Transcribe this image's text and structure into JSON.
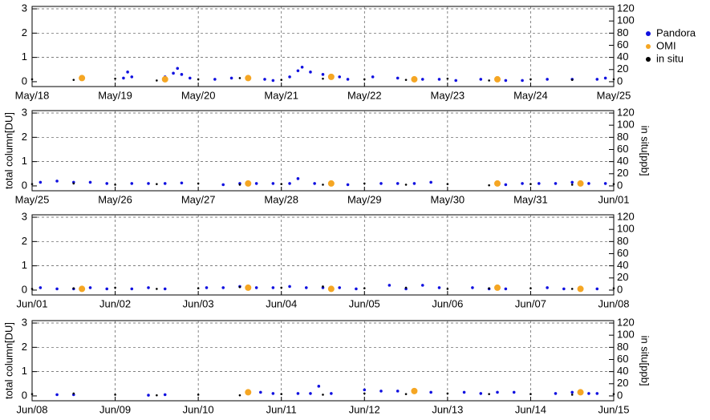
{
  "chart_data": [
    {
      "type": "scatter",
      "xlim": [
        18,
        25
      ],
      "ylim": [
        -0.2,
        3.1
      ],
      "y2lim": [
        -8,
        124
      ],
      "grid": true,
      "legend": "right",
      "xticks": [
        {
          "value": 18,
          "label": "May/18"
        },
        {
          "value": 19,
          "label": "May/19"
        },
        {
          "value": 20,
          "label": "May/20"
        },
        {
          "value": 21,
          "label": "May/21"
        },
        {
          "value": 22,
          "label": "May/22"
        },
        {
          "value": 23,
          "label": "May/23"
        },
        {
          "value": 24,
          "label": "May/24"
        },
        {
          "value": 25,
          "label": "May/25"
        }
      ],
      "yticks": [
        0,
        1,
        2,
        3
      ],
      "y2ticks": [
        0,
        20,
        40,
        60,
        80,
        100,
        120
      ],
      "series": [
        {
          "name": "Pandora",
          "color": "#1010e0",
          "x": [
            19.1,
            19.15,
            19.2,
            19.6,
            19.7,
            19.75,
            19.8,
            19.9,
            20.2,
            20.4,
            20.6,
            20.8,
            20.9,
            21.1,
            21.2,
            21.25,
            21.35,
            21.5,
            21.7,
            21.8,
            22.1,
            22.4,
            22.7,
            22.9,
            23.1,
            23.4,
            23.7,
            23.9,
            24.2,
            24.5,
            24.8,
            24.9
          ],
          "values": [
            0.15,
            0.4,
            0.2,
            0.2,
            0.35,
            0.55,
            0.3,
            0.15,
            0.1,
            0.15,
            0.1,
            0.1,
            0.05,
            0.2,
            0.45,
            0.6,
            0.4,
            0.3,
            0.2,
            0.1,
            0.2,
            0.15,
            0.1,
            0.1,
            0.05,
            0.1,
            0.05,
            0.05,
            0.1,
            0.1,
            0.1,
            0.15
          ]
        },
        {
          "name": "OMI",
          "color": "#f5a623",
          "x": [
            18.6,
            19.6,
            20.6,
            21.6,
            22.6,
            23.6
          ],
          "values": [
            0.15,
            0.1,
            0.15,
            0.2,
            0.1,
            0.1
          ]
        },
        {
          "name": "in situ",
          "color": "#000000",
          "axis": "y2",
          "x": [
            18,
            18.5,
            19,
            19.5,
            20,
            20.5,
            21,
            21.5,
            22,
            22.5,
            23,
            23.5,
            24,
            24.5,
            25
          ],
          "values": [
            4,
            3,
            5,
            2,
            4,
            6,
            3,
            5,
            4,
            3,
            5,
            2,
            4,
            3,
            4
          ]
        }
      ]
    },
    {
      "type": "scatter",
      "xlim": [
        25,
        32
      ],
      "ylim": [
        -0.2,
        3.1
      ],
      "y2lim": [
        -8,
        124
      ],
      "grid": true,
      "ylabel": "total column[DU]",
      "y2label": "in situ[ppb]",
      "xticks": [
        {
          "value": 25,
          "label": "May/25"
        },
        {
          "value": 26,
          "label": "May/26"
        },
        {
          "value": 27,
          "label": "May/27"
        },
        {
          "value": 28,
          "label": "May/28"
        },
        {
          "value": 29,
          "label": "May/29"
        },
        {
          "value": 30,
          "label": "May/30"
        },
        {
          "value": 31,
          "label": "May/31"
        },
        {
          "value": 32,
          "label": "Jun/01"
        }
      ],
      "yticks": [
        0,
        1,
        2,
        3
      ],
      "y2ticks": [
        0,
        20,
        40,
        60,
        80,
        100,
        120
      ],
      "series": [
        {
          "color": "#1010e0",
          "x": [
            25.1,
            25.3,
            25.5,
            25.7,
            25.9,
            26.2,
            26.4,
            26.6,
            26.8,
            27.3,
            27.5,
            27.7,
            27.9,
            28.1,
            28.2,
            28.4,
            28.6,
            28.8,
            29.2,
            29.4,
            29.6,
            29.8,
            30.7,
            30.9,
            31.1,
            31.3,
            31.5,
            31.7,
            31.9
          ],
          "values": [
            0.15,
            0.2,
            0.15,
            0.15,
            0.1,
            0.1,
            0.1,
            0.1,
            0.12,
            0.05,
            0.1,
            0.1,
            0.1,
            0.1,
            0.3,
            0.1,
            0.1,
            0.05,
            0.1,
            0.1,
            0.1,
            0.15,
            0.05,
            0.1,
            0.1,
            0.1,
            0.15,
            0.1,
            0.1
          ]
        },
        {
          "color": "#f5a623",
          "x": [
            27.6,
            28.6,
            30.6,
            31.6
          ],
          "values": [
            0.1,
            0.1,
            0.1,
            0.1
          ]
        },
        {
          "color": "#000000",
          "axis": "y2",
          "x": [
            25,
            25.5,
            26,
            26.5,
            27,
            27.5,
            28,
            28.5,
            29,
            29.5,
            30,
            30.5,
            31,
            31.5,
            32
          ],
          "values": [
            3,
            4,
            2,
            3,
            4,
            2,
            3,
            2,
            4,
            2,
            3,
            1,
            3,
            2,
            3
          ]
        }
      ]
    },
    {
      "type": "scatter",
      "xlim": [
        32,
        39
      ],
      "ylim": [
        -0.2,
        3.1
      ],
      "y2lim": [
        -8,
        124
      ],
      "grid": true,
      "xticks": [
        {
          "value": 32,
          "label": "Jun/01"
        },
        {
          "value": 33,
          "label": "Jun/02"
        },
        {
          "value": 34,
          "label": "Jun/03"
        },
        {
          "value": 35,
          "label": "Jun/04"
        },
        {
          "value": 36,
          "label": "Jun/05"
        },
        {
          "value": 37,
          "label": "Jun/06"
        },
        {
          "value": 38,
          "label": "Jun/07"
        },
        {
          "value": 39,
          "label": "Jun/08"
        }
      ],
      "yticks": [
        0,
        1,
        2,
        3
      ],
      "y2ticks": [
        0,
        20,
        40,
        60,
        80,
        100,
        120
      ],
      "series": [
        {
          "color": "#1010e0",
          "x": [
            32.1,
            32.3,
            32.5,
            32.7,
            32.9,
            33.2,
            33.4,
            33.6,
            34.1,
            34.3,
            34.5,
            34.7,
            34.9,
            35.1,
            35.3,
            35.5,
            35.7,
            35.9,
            36.3,
            36.5,
            36.7,
            36.9,
            37.3,
            37.5,
            37.7,
            38.2,
            38.4,
            38.6,
            38.8
          ],
          "values": [
            0.1,
            0.05,
            0.05,
            0.1,
            0.05,
            0.05,
            0.1,
            0.05,
            0.1,
            0.1,
            0.15,
            0.1,
            0.1,
            0.15,
            0.1,
            0.1,
            0.1,
            0.05,
            0.2,
            0.05,
            0.2,
            0.1,
            0.1,
            0.05,
            0.05,
            0.1,
            0.05,
            0.05,
            0.05
          ]
        },
        {
          "color": "#f5a623",
          "x": [
            32.6,
            34.6,
            35.6,
            37.6,
            38.6
          ],
          "values": [
            0.05,
            0.1,
            0.05,
            0.1,
            0.05
          ]
        },
        {
          "color": "#000000",
          "axis": "y2",
          "x": [
            32,
            32.5,
            33,
            33.5,
            34,
            34.5,
            35,
            35.5,
            36,
            36.5,
            37,
            37.5,
            38,
            38.5,
            39
          ],
          "values": [
            2,
            3,
            4,
            2,
            3,
            5,
            4,
            6,
            3,
            4,
            2,
            3,
            3,
            2,
            3
          ]
        }
      ]
    },
    {
      "type": "scatter",
      "xlim": [
        39,
        46
      ],
      "ylim": [
        -0.2,
        3.1
      ],
      "y2lim": [
        -8,
        124
      ],
      "grid": true,
      "ylabel": "total column[DU]",
      "y2label": "in situ[ppb]",
      "xticks": [
        {
          "value": 39,
          "label": "Jun/08"
        },
        {
          "value": 40,
          "label": "Jun/09"
        },
        {
          "value": 41,
          "label": "Jun/10"
        },
        {
          "value": 42,
          "label": "Jun/11"
        },
        {
          "value": 43,
          "label": "Jun/12"
        },
        {
          "value": 44,
          "label": "Jun/13"
        },
        {
          "value": 45,
          "label": "Jun/14"
        },
        {
          "value": 46,
          "label": "Jun/15"
        }
      ],
      "yticks": [
        0,
        1,
        2,
        3
      ],
      "y2ticks": [
        0,
        20,
        40,
        60,
        80,
        100,
        120
      ],
      "series": [
        {
          "color": "#1010e0",
          "x": [
            39.3,
            39.5,
            40.4,
            40.6,
            41.6,
            41.75,
            41.9,
            42.2,
            42.35,
            42.45,
            42.6,
            43.0,
            43.2,
            43.4,
            43.6,
            43.8,
            44.2,
            44.4,
            44.6,
            44.8,
            45.3,
            45.5,
            45.7,
            45.8
          ],
          "values": [
            0.05,
            0.05,
            0.03,
            0.05,
            0.1,
            0.15,
            0.1,
            0.1,
            0.1,
            0.4,
            0.1,
            0.25,
            0.2,
            0.2,
            0.2,
            0.15,
            0.15,
            0.1,
            0.15,
            0.15,
            0.1,
            0.15,
            0.1,
            0.1
          ]
        },
        {
          "color": "#f5a623",
          "x": [
            41.6,
            43.6,
            45.6
          ],
          "values": [
            0.15,
            0.2,
            0.15
          ]
        },
        {
          "color": "#000000",
          "axis": "y2",
          "x": [
            39,
            39.5,
            40,
            40.5,
            41,
            41.5,
            42,
            42.5,
            43,
            43.5,
            44,
            44.5,
            45,
            45.5,
            46
          ],
          "values": [
            3,
            4,
            2,
            1,
            2,
            1,
            3,
            2,
            4,
            3,
            4,
            3,
            3,
            2,
            3
          ]
        }
      ]
    }
  ]
}
